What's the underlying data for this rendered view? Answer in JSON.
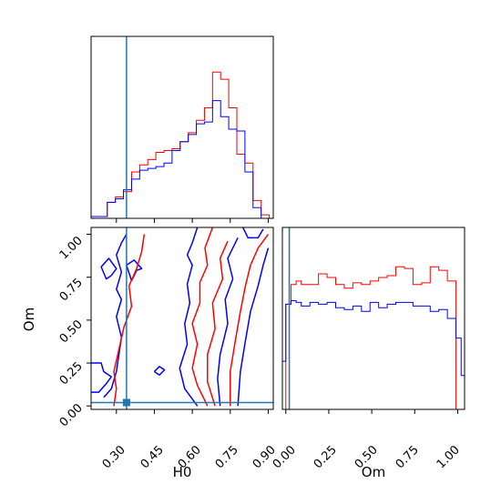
{
  "chart_data": {
    "type": "corner",
    "parameters": [
      "H0",
      "Om"
    ],
    "truths": {
      "H0": 0.34,
      "Om": 0.02
    },
    "colors": {
      "red": "#ff0000",
      "blue": "#0000ff",
      "truth": "#1f77b4"
    },
    "h0_ticks": [
      "0.30",
      "0.45",
      "0.60",
      "0.75",
      "0.90"
    ],
    "om_ticks": [
      "0.00",
      "0.25",
      "0.50",
      "0.75",
      "1.00"
    ],
    "axis_labels": {
      "x_left": "H0",
      "x_right": "Om",
      "y_left": "Om"
    },
    "h0_range": [
      0.2,
      0.92
    ],
    "om_range": [
      -0.02,
      1.04
    ],
    "panels": [
      {
        "id": "hist_H0",
        "type": "histogram",
        "bin_edges": [
          0.2,
          0.232,
          0.264,
          0.296,
          0.328,
          0.36,
          0.392,
          0.424,
          0.456,
          0.488,
          0.52,
          0.552,
          0.584,
          0.616,
          0.648,
          0.68,
          0.712,
          0.744,
          0.776,
          0.808,
          0.84,
          0.872,
          0.904
        ],
        "series": [
          {
            "color": "red",
            "heights": [
              0.01,
              0.01,
              0.09,
              0.12,
              0.15,
              0.26,
              0.3,
              0.33,
              0.37,
              0.38,
              0.39,
              0.43,
              0.48,
              0.55,
              0.62,
              0.82,
              0.78,
              0.62,
              0.36,
              0.31,
              0.1,
              0.02
            ]
          },
          {
            "color": "blue",
            "heights": [
              0.01,
              0.01,
              0.09,
              0.11,
              0.16,
              0.22,
              0.27,
              0.28,
              0.29,
              0.31,
              0.38,
              0.43,
              0.47,
              0.53,
              0.54,
              0.66,
              0.57,
              0.5,
              0.49,
              0.26,
              0.06,
              0.0
            ]
          }
        ]
      },
      {
        "id": "hist_Om",
        "type": "histogram",
        "bin_edges": [
          -0.02,
          0.0,
          0.03,
          0.06,
          0.09,
          0.14,
          0.19,
          0.24,
          0.29,
          0.34,
          0.39,
          0.44,
          0.49,
          0.54,
          0.59,
          0.64,
          0.69,
          0.74,
          0.79,
          0.84,
          0.89,
          0.94,
          0.99,
          1.02,
          1.04
        ],
        "series": [
          {
            "color": "red",
            "heights": [
              0.0,
              0.59,
              0.7,
              0.72,
              0.7,
              0.7,
              0.76,
              0.74,
              0.7,
              0.68,
              0.71,
              0.7,
              0.72,
              0.74,
              0.75,
              0.8,
              0.79,
              0.7,
              0.71,
              0.8,
              0.78,
              0.72,
              0.0,
              0.0
            ]
          },
          {
            "color": "blue",
            "heights": [
              0.27,
              0.59,
              0.61,
              0.6,
              0.58,
              0.6,
              0.59,
              0.6,
              0.57,
              0.56,
              0.58,
              0.55,
              0.6,
              0.57,
              0.59,
              0.6,
              0.6,
              0.58,
              0.58,
              0.55,
              0.56,
              0.51,
              0.4,
              0.19
            ]
          }
        ]
      },
      {
        "id": "contour_H0_Om",
        "type": "contour",
        "contours": [
          {
            "color": "blue",
            "points": [
              [
                0.2,
                0.25
              ],
              [
                0.24,
                0.25
              ],
              [
                0.25,
                0.2
              ],
              [
                0.28,
                0.17
              ],
              [
                0.26,
                0.13
              ],
              [
                0.23,
                0.08
              ],
              [
                0.2,
                0.08
              ]
            ]
          },
          {
            "color": "blue",
            "points": [
              [
                0.25,
                0.05
              ],
              [
                0.28,
                0.1
              ],
              [
                0.3,
                0.2
              ],
              [
                0.32,
                0.4
              ],
              [
                0.3,
                0.52
              ],
              [
                0.32,
                0.62
              ],
              [
                0.3,
                0.68
              ],
              [
                0.32,
                0.78
              ],
              [
                0.3,
                0.88
              ],
              [
                0.32,
                0.95
              ],
              [
                0.34,
                1.0
              ]
            ]
          },
          {
            "color": "blue",
            "points": [
              [
                0.28,
                0.76
              ],
              [
                0.3,
                0.8
              ],
              [
                0.27,
                0.86
              ],
              [
                0.24,
                0.81
              ],
              [
                0.26,
                0.74
              ],
              [
                0.28,
                0.76
              ]
            ]
          },
          {
            "color": "blue",
            "points": [
              [
                0.36,
                0.73
              ],
              [
                0.38,
                0.79
              ],
              [
                0.4,
                0.8
              ],
              [
                0.37,
                0.85
              ],
              [
                0.34,
                0.82
              ],
              [
                0.36,
                0.73
              ]
            ]
          },
          {
            "color": "red",
            "points": [
              [
                0.29,
                0.0
              ],
              [
                0.3,
                0.1
              ],
              [
                0.29,
                0.2
              ],
              [
                0.31,
                0.33
              ],
              [
                0.33,
                0.46
              ],
              [
                0.36,
                0.58
              ],
              [
                0.35,
                0.7
              ],
              [
                0.38,
                0.8
              ],
              [
                0.4,
                0.9
              ],
              [
                0.41,
                1.0
              ]
            ]
          },
          {
            "color": "blue",
            "points": [
              [
                0.62,
                0.0
              ],
              [
                0.57,
                0.1
              ],
              [
                0.55,
                0.22
              ],
              [
                0.58,
                0.36
              ],
              [
                0.57,
                0.48
              ],
              [
                0.59,
                0.6
              ],
              [
                0.58,
                0.71
              ],
              [
                0.6,
                0.82
              ],
              [
                0.58,
                0.88
              ],
              [
                0.6,
                0.95
              ],
              [
                0.62,
                1.04
              ]
            ]
          },
          {
            "color": "red",
            "points": [
              [
                0.66,
                0.0
              ],
              [
                0.62,
                0.12
              ],
              [
                0.6,
                0.22
              ],
              [
                0.62,
                0.36
              ],
              [
                0.6,
                0.48
              ],
              [
                0.63,
                0.6
              ],
              [
                0.63,
                0.72
              ],
              [
                0.66,
                0.82
              ],
              [
                0.65,
                0.92
              ],
              [
                0.68,
                1.04
              ]
            ]
          },
          {
            "color": "red",
            "points": [
              [
                0.69,
                0.0
              ],
              [
                0.66,
                0.14
              ],
              [
                0.66,
                0.3
              ],
              [
                0.69,
                0.45
              ],
              [
                0.68,
                0.6
              ],
              [
                0.72,
                0.74
              ],
              [
                0.71,
                0.86
              ],
              [
                0.74,
                0.96
              ]
            ]
          },
          {
            "color": "blue",
            "points": [
              [
                0.71,
                0.0
              ],
              [
                0.7,
                0.16
              ],
              [
                0.71,
                0.3
              ],
              [
                0.74,
                0.48
              ],
              [
                0.73,
                0.62
              ],
              [
                0.76,
                0.74
              ],
              [
                0.74,
                0.86
              ],
              [
                0.78,
                0.98
              ]
            ]
          },
          {
            "color": "red",
            "points": [
              [
                0.75,
                0.0
              ],
              [
                0.75,
                0.2
              ],
              [
                0.77,
                0.38
              ],
              [
                0.79,
                0.55
              ],
              [
                0.81,
                0.7
              ],
              [
                0.83,
                0.82
              ],
              [
                0.86,
                0.92
              ],
              [
                0.9,
                1.0
              ]
            ]
          },
          {
            "color": "blue",
            "points": [
              [
                0.78,
                0.0
              ],
              [
                0.79,
                0.2
              ],
              [
                0.81,
                0.38
              ],
              [
                0.83,
                0.55
              ],
              [
                0.86,
                0.7
              ],
              [
                0.88,
                0.82
              ],
              [
                0.9,
                0.92
              ]
            ]
          },
          {
            "color": "blue",
            "points": [
              [
                0.8,
                1.04
              ],
              [
                0.82,
                0.98
              ],
              [
                0.86,
                0.98
              ],
              [
                0.88,
                1.03
              ]
            ]
          },
          {
            "color": "blue",
            "points": [
              [
                0.45,
                0.2
              ],
              [
                0.47,
                0.23
              ],
              [
                0.49,
                0.21
              ],
              [
                0.47,
                0.18
              ],
              [
                0.45,
                0.2
              ]
            ]
          }
        ]
      }
    ]
  }
}
